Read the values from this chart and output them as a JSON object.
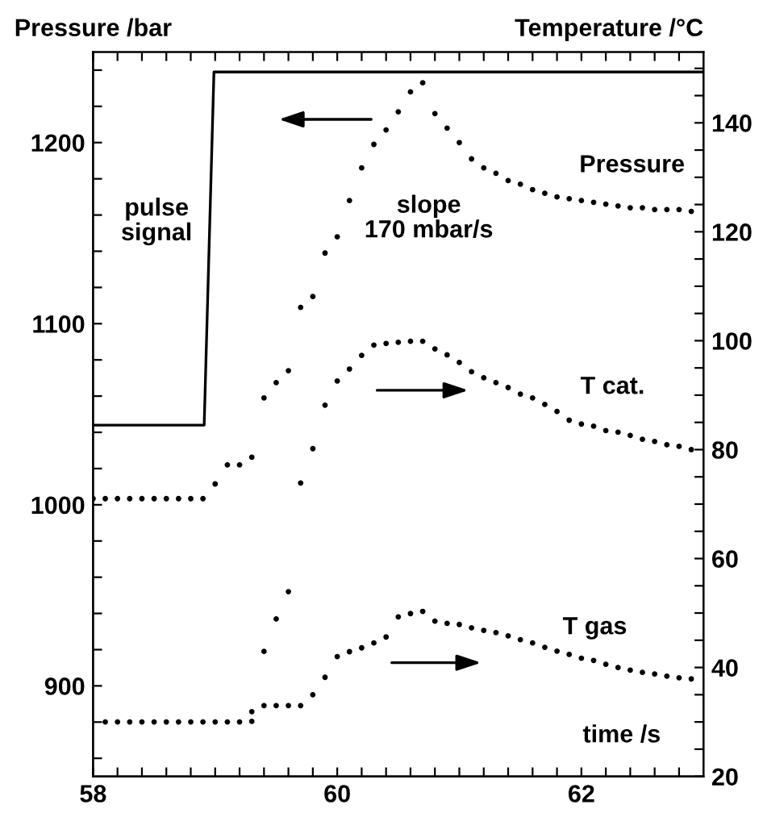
{
  "chart_data": {
    "type": "scatter",
    "xlabel": "time /s",
    "ylabel": "Pressure /bar",
    "y2label": "Temperature /°C",
    "xlim": [
      58,
      63
    ],
    "xticks": [
      58,
      {
        "value": 58.2,
        "label": null
      },
      {
        "value": 58.4,
        "label": null
      },
      {
        "value": 58.6,
        "label": null
      },
      {
        "value": 58.8,
        "label": null
      },
      {
        "value": 59,
        "label": null
      },
      {
        "value": 59.2,
        "label": null
      },
      {
        "value": 59.4,
        "label": null
      },
      {
        "value": 59.6,
        "label": null
      },
      {
        "value": 59.8,
        "label": null
      },
      60,
      {
        "value": 60.2,
        "label": null
      },
      {
        "value": 60.4,
        "label": null
      },
      {
        "value": 60.6,
        "label": null
      },
      {
        "value": 60.8,
        "label": null
      },
      {
        "value": 61,
        "label": null
      },
      {
        "value": 61.2,
        "label": null
      },
      {
        "value": 61.4,
        "label": null
      },
      {
        "value": 61.6,
        "label": null
      },
      {
        "value": 61.8,
        "label": null
      },
      62,
      {
        "value": 62.2,
        "label": null
      },
      {
        "value": 62.4,
        "label": null
      },
      {
        "value": 62.6,
        "label": null
      },
      {
        "value": 62.8,
        "label": null
      }
    ],
    "ylim": [
      850,
      1250
    ],
    "yticks": [
      {
        "value": 860,
        "label": null
      },
      {
        "value": 880,
        "label": null
      },
      900,
      {
        "value": 920,
        "label": null
      },
      {
        "value": 940,
        "label": null
      },
      {
        "value": 960,
        "label": null
      },
      {
        "value": 980,
        "label": null
      },
      1000,
      {
        "value": 1020,
        "label": null
      },
      {
        "value": 1040,
        "label": null
      },
      {
        "value": 1060,
        "label": null
      },
      {
        "value": 1080,
        "label": null
      },
      1100,
      {
        "value": 1120,
        "label": null
      },
      {
        "value": 1140,
        "label": null
      },
      {
        "value": 1160,
        "label": null
      },
      {
        "value": 1180,
        "label": null
      },
      1200,
      {
        "value": 1220,
        "label": null
      },
      {
        "value": 1240,
        "label": null
      }
    ],
    "y2lim": [
      20,
      153
    ],
    "y2ticks": [
      20,
      {
        "value": 25,
        "label": null
      },
      {
        "value": 30,
        "label": null
      },
      {
        "value": 35,
        "label": null
      },
      40,
      {
        "value": 45,
        "label": null
      },
      {
        "value": 50,
        "label": null
      },
      {
        "value": 55,
        "label": null
      },
      60,
      {
        "value": 65,
        "label": null
      },
      {
        "value": 70,
        "label": null
      },
      {
        "value": 75,
        "label": null
      },
      80,
      {
        "value": 85,
        "label": null
      },
      {
        "value": 90,
        "label": null
      },
      {
        "value": 95,
        "label": null
      },
      100,
      {
        "value": 105,
        "label": null
      },
      {
        "value": 110,
        "label": null
      },
      {
        "value": 115,
        "label": null
      },
      120,
      {
        "value": 125,
        "label": null
      },
      {
        "value": 130,
        "label": null
      },
      {
        "value": 135,
        "label": null
      },
      140,
      {
        "value": 145,
        "label": null
      },
      {
        "value": 150,
        "label": null
      }
    ],
    "marker": "circle",
    "grid": false,
    "legend": false,
    "series": [
      {
        "type": "line",
        "name": "pulse\nsignal",
        "color": "#000000",
        "line_style": "solid",
        "marker": "none",
        "x": [
          58,
          58.91,
          58.99,
          63
        ],
        "values": [
          1044,
          1044,
          1239,
          1239
        ]
      },
      {
        "name": "Pressure",
        "color": "#000000",
        "x": [
          59.4,
          59.5,
          59.6,
          59.7,
          59.8,
          59.9,
          59.7,
          59.8,
          59.9,
          60.0,
          60.1,
          60.2,
          60.3,
          60.4,
          60.5,
          60.6,
          60.7,
          60.8,
          60.9,
          61.0,
          61.1,
          61.2,
          61.3,
          61.4,
          61.5,
          61.6,
          61.7,
          61.8,
          61.9,
          62.0,
          62.1,
          62.2,
          62.3,
          62.4,
          62.5,
          62.6,
          62.7,
          62.8,
          62.9
        ],
        "values": [
          919,
          937,
          952,
          1012,
          1031,
          1055,
          1109,
          1115,
          1139,
          1148,
          1168,
          1186,
          1199,
          1207,
          1217,
          1228,
          1233,
          1216,
          1208,
          1200,
          1191,
          1186,
          1183,
          1179,
          1177,
          1174,
          1172,
          1170,
          1169,
          1168,
          1167,
          1166,
          1165,
          1164,
          1164,
          1163,
          1163,
          1163,
          1162
        ]
      },
      {
        "name": "T cat.",
        "color": "#000000",
        "axis": "y2",
        "x": [
          58.0,
          58.1,
          58.2,
          58.3,
          58.4,
          58.5,
          58.6,
          58.7,
          58.8,
          58.9,
          59.0,
          59.1,
          59.2,
          59.3,
          59.4,
          59.5,
          59.6,
          60.0,
          60.1,
          60.2,
          60.3,
          60.4,
          60.5,
          60.6,
          60.7,
          60.8,
          60.9,
          61.0,
          61.1,
          61.2,
          61.3,
          61.4,
          61.5,
          61.6,
          61.7,
          61.8,
          61.9,
          62.0,
          62.1,
          62.2,
          62.3,
          62.4,
          62.5,
          62.6,
          62.7,
          62.8,
          62.9
        ],
        "values": [
          71.0,
          71.0,
          71.0,
          71.0,
          71.0,
          71.0,
          71.0,
          71.0,
          71.0,
          71.0,
          73.7,
          77.2,
          77.2,
          78.6,
          89.5,
          92.3,
          94.5,
          92.6,
          94.8,
          97.3,
          99.2,
          99.5,
          99.7,
          99.9,
          99.9,
          98.5,
          97.4,
          96.0,
          94.3,
          93.2,
          92.3,
          91.4,
          90.2,
          89.5,
          88.3,
          87.0,
          85.4,
          84.7,
          84.3,
          83.5,
          83.2,
          82.6,
          81.9,
          81.5,
          80.9,
          80.6,
          80.0
        ]
      },
      {
        "name": "T gas",
        "color": "#000000",
        "axis": "y2",
        "x": [
          58.1,
          58.2,
          58.3,
          58.4,
          58.5,
          58.6,
          58.7,
          58.8,
          58.9,
          59.0,
          59.1,
          59.2,
          59.3,
          59.3,
          59.4,
          59.5,
          59.6,
          59.7,
          59.8,
          59.9,
          60.0,
          60.1,
          60.2,
          60.3,
          60.4,
          60.5,
          60.6,
          60.7,
          60.8,
          60.9,
          61.0,
          61.1,
          61.2,
          61.3,
          61.4,
          61.5,
          61.6,
          61.7,
          61.8,
          61.9,
          62.0,
          62.1,
          62.2,
          62.3,
          62.4,
          62.5,
          62.6,
          62.7,
          62.8,
          62.9
        ],
        "values": [
          30.0,
          30.0,
          30.0,
          30.0,
          30.0,
          30.0,
          30.0,
          30.0,
          30.0,
          30.0,
          30.0,
          30.0,
          30.1,
          31.9,
          33.0,
          33.0,
          33.0,
          33.0,
          35.0,
          38.2,
          42.0,
          42.9,
          43.6,
          44.5,
          45.6,
          49.3,
          49.9,
          50.3,
          48.5,
          48.1,
          47.9,
          47.3,
          46.8,
          46.4,
          45.8,
          45.1,
          44.5,
          43.7,
          43.0,
          42.4,
          41.7,
          41.3,
          40.6,
          40.0,
          39.5,
          39.1,
          38.8,
          38.4,
          38.1,
          37.9
        ]
      }
    ],
    "annotations": [
      "slope\n170 mbar/s"
    ]
  }
}
